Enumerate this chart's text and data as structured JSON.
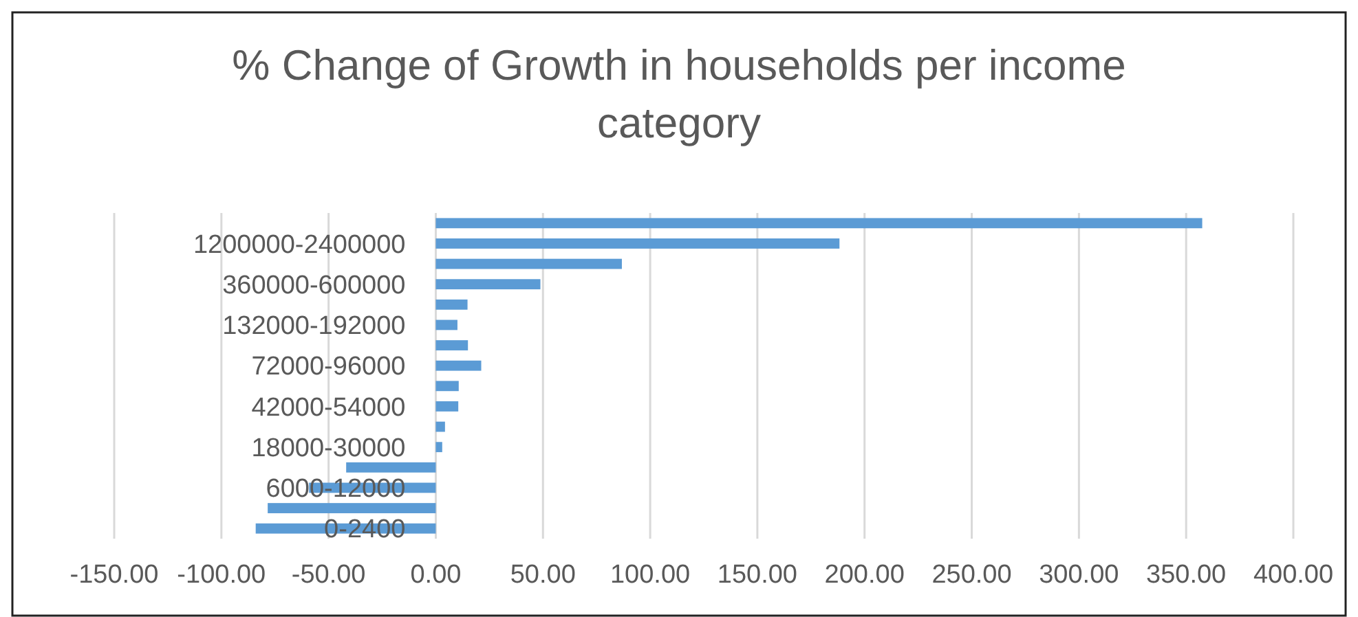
{
  "chart_data": {
    "type": "bar",
    "orientation": "horizontal",
    "title": "% Change of Growth in households per income category",
    "categories": [
      null,
      "1200000-2400000",
      null,
      "360000-600000",
      null,
      "132000-192000",
      null,
      "72000-96000",
      null,
      "42000-54000",
      null,
      "18000-30000",
      null,
      "6000-12000",
      null,
      "0-2400"
    ],
    "values": [
      357.5,
      188.3,
      86.8,
      48.8,
      14.8,
      10.1,
      15.0,
      21.2,
      10.7,
      10.5,
      4.3,
      3.0,
      -41.8,
      -59.1,
      -78.4,
      -84.0
    ],
    "color": "#5b9bd5",
    "xlim": [
      -150,
      400
    ],
    "xticks": [
      {
        "value": -150,
        "label": "-150.00"
      },
      {
        "value": -100,
        "label": "-100.00"
      },
      {
        "value": -50,
        "label": "-50.00"
      },
      {
        "value": 0,
        "label": "0.00"
      },
      {
        "value": 50,
        "label": "50.00"
      },
      {
        "value": 100,
        "label": "100.00"
      },
      {
        "value": 150,
        "label": "150.00"
      },
      {
        "value": 200,
        "label": "200.00"
      },
      {
        "value": 250,
        "label": "250.00"
      },
      {
        "value": 300,
        "label": "300.00"
      },
      {
        "value": 350,
        "label": "350.00"
      },
      {
        "value": 400,
        "label": "400.00"
      }
    ],
    "grid": "x"
  }
}
